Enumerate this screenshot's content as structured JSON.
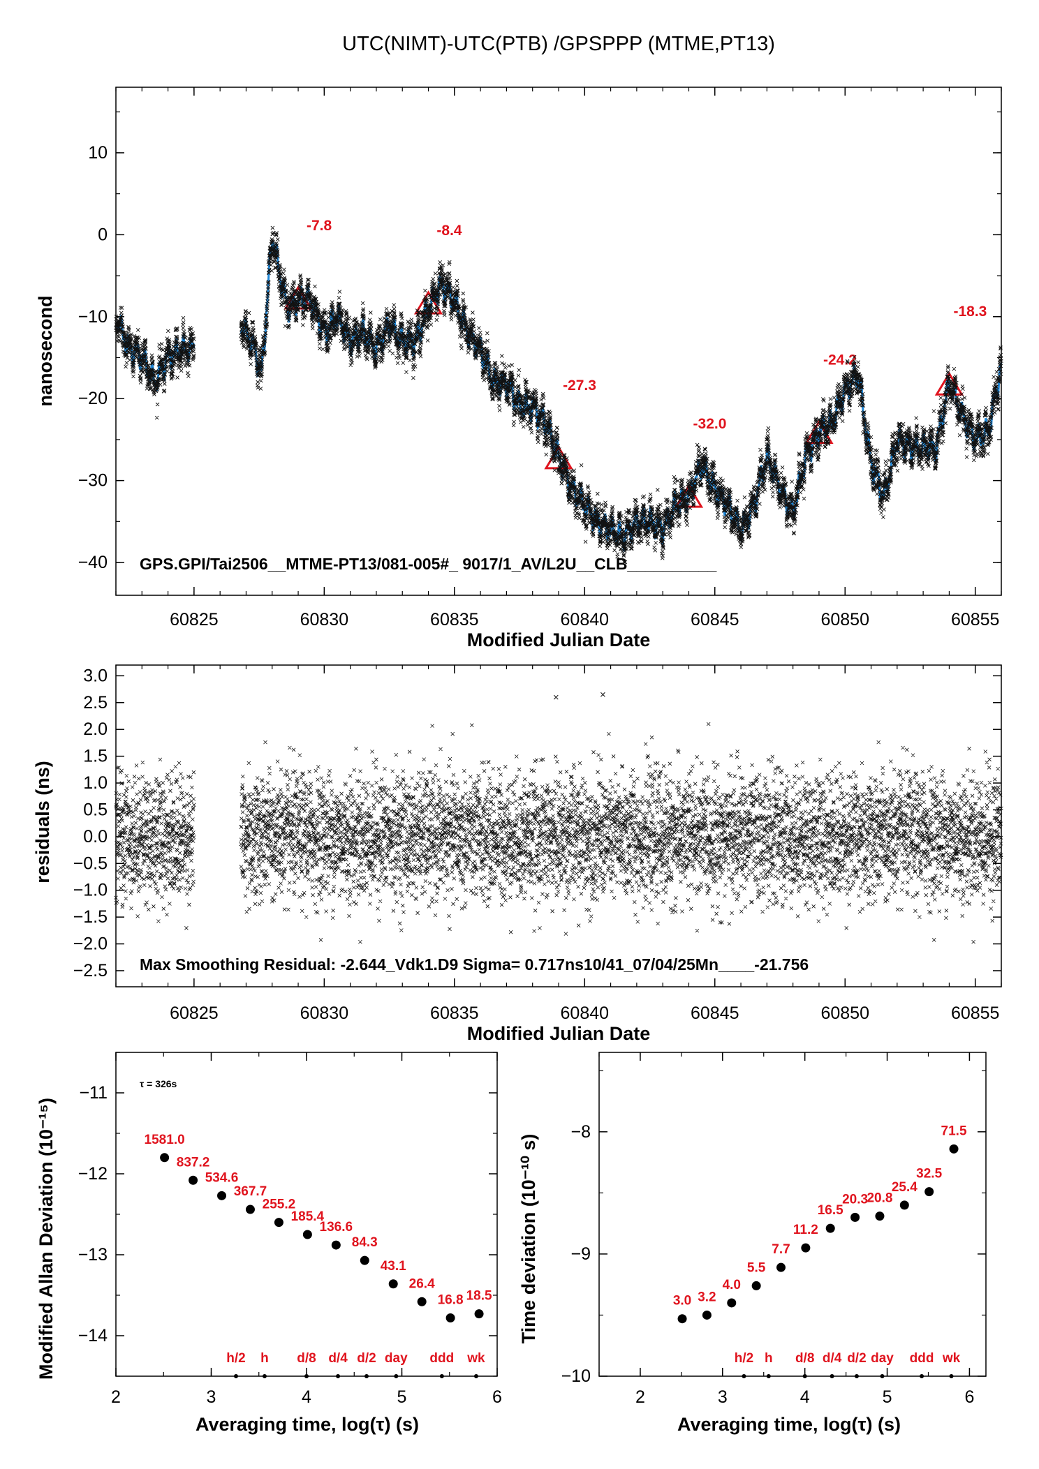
{
  "title": "UTC(NIMT)-UTC(PTB)  /GPSPPP  (MTME,PT13)",
  "colors": {
    "fit": "#1f86d6",
    "points": "#111111",
    "marker": "#e0141e",
    "label": "#e0141e"
  },
  "chart_data": [
    {
      "type": "scatter",
      "ylabel": "nanosecond",
      "xlabel": "Modified Julian Date",
      "xlim": [
        60822,
        60856
      ],
      "ylim": [
        -44,
        18
      ],
      "xticks": [
        "60825",
        "60830",
        "60835",
        "60840",
        "60845",
        "60850",
        "60855"
      ],
      "yticks": [
        "10",
        "0",
        "−10",
        "−20",
        "−30",
        "−40"
      ],
      "annotation": "GPS.GPI/Tai2506__MTME-PT13/081-005#_  9017/1_AV/L2U__CLB__________",
      "data_gap": [
        60825,
        60826.8
      ],
      "trend": {
        "x": [
          60822,
          60822.5,
          60823,
          60823.5,
          60824,
          60824.5,
          60824.9,
          60826.8,
          60827.2,
          60827.6,
          60828,
          60828.3,
          60828.6,
          60829,
          60829.5,
          60830,
          60830.5,
          60831,
          60831.5,
          60832,
          60832.5,
          60833,
          60833.5,
          60834,
          60834.5,
          60835,
          60835.5,
          60836,
          60836.5,
          60837,
          60837.5,
          60838,
          60838.5,
          60839,
          60839.5,
          60840,
          60840.5,
          60841,
          60841.5,
          60842,
          60842.5,
          60843,
          60843.5,
          60844,
          60844.5,
          60845,
          60845.5,
          60846,
          60846.5,
          60847,
          60847.5,
          60848,
          60848.5,
          60849,
          60849.5,
          60850,
          60850.5,
          60851,
          60851.5,
          60852,
          60852.5,
          60853,
          60853.5,
          60854,
          60854.5,
          60855,
          60855.5,
          60856
        ],
        "y": [
          -10,
          -14,
          -15,
          -18,
          -15,
          -14,
          -14,
          -11,
          -13,
          -17,
          0,
          -5,
          -9,
          -8,
          -8,
          -12,
          -10,
          -13,
          -12,
          -14,
          -11,
          -13,
          -13,
          -9,
          -6,
          -8,
          -12,
          -14,
          -18,
          -18,
          -21,
          -21,
          -23,
          -27,
          -31,
          -33,
          -35,
          -36,
          -37,
          -35,
          -35,
          -36,
          -33,
          -32,
          -28,
          -31,
          -33,
          -36,
          -33,
          -27,
          -31,
          -34,
          -27,
          -24,
          -23,
          -19,
          -17,
          -28,
          -32,
          -25,
          -26,
          -26,
          -26,
          -18,
          -22,
          -25,
          -24,
          -16
        ]
      },
      "markers": [
        {
          "x": 60829,
          "y": -7.8,
          "label": "-7.8"
        },
        {
          "x": 60834,
          "y": -8.4,
          "label": "-8.4"
        },
        {
          "x": 60839,
          "y": -27.3,
          "label": "-27.3"
        },
        {
          "x": 60844,
          "y": -32.0,
          "label": "-32.0"
        },
        {
          "x": 60849,
          "y": -24.2,
          "label": "-24.2"
        },
        {
          "x": 60854,
          "y": -18.3,
          "label": "-18.3"
        }
      ]
    },
    {
      "type": "scatter",
      "ylabel": "residuals (ns)",
      "xlabel": "Modified Julian Date",
      "xlim": [
        60822,
        60856
      ],
      "ylim": [
        -2.8,
        3.2
      ],
      "xticks": [
        "60825",
        "60830",
        "60835",
        "60840",
        "60845",
        "60850",
        "60855"
      ],
      "yticks": [
        "3.0",
        "2.5",
        "2.0",
        "1.5",
        "1.0",
        "0.5",
        "0.0",
        "−0.5",
        "−1.0",
        "−1.5",
        "−2.0",
        "−2.5"
      ],
      "annotation": "Max Smoothing Residual: -2.644_Vdk1.D9  Sigma= 0.717ns10/41_07/04/25Mn____-21.756",
      "data_gap": [
        60825,
        60826.8
      ],
      "sigma": 0.717,
      "max_residual": -2.644,
      "outliers": [
        {
          "x": 60838.9,
          "y": 2.6
        },
        {
          "x": 60840.7,
          "y": 2.65
        }
      ]
    },
    {
      "type": "scatter",
      "ylabel": "Modified Allan Deviation (10⁻¹⁵)",
      "xlabel": "Averaging time, log(τ) (s)",
      "xlim": [
        2,
        6
      ],
      "ylim": [
        -14.5,
        -10.5
      ],
      "xticks": [
        "2",
        "3",
        "4",
        "5",
        "6"
      ],
      "yticks": [
        "−11",
        "−12",
        "−13",
        "−14"
      ],
      "tau_note": "τ = 326s",
      "x": [
        2.51,
        2.81,
        3.11,
        3.41,
        3.71,
        4.01,
        4.31,
        4.61,
        4.91,
        5.21,
        5.51,
        5.81
      ],
      "y": [
        -11.8,
        -12.08,
        -12.27,
        -12.44,
        -12.6,
        -12.75,
        -12.88,
        -13.07,
        -13.36,
        -13.58,
        -13.78,
        -13.73
      ],
      "point_labels": [
        "1581.0",
        "837.2",
        "534.6",
        "367.7",
        "255.2",
        "185.4",
        "136.6",
        "84.3",
        "43.1",
        "26.4",
        "16.8",
        "18.5"
      ],
      "reference_ticks": [
        {
          "x": 3.26,
          "label": "h/2"
        },
        {
          "x": 3.56,
          "label": "h"
        },
        {
          "x": 4.0,
          "label": "d/8"
        },
        {
          "x": 4.33,
          "label": "d/4"
        },
        {
          "x": 4.63,
          "label": "d/2"
        },
        {
          "x": 4.94,
          "label": "day"
        },
        {
          "x": 5.42,
          "label": "ddd"
        },
        {
          "x": 5.78,
          "label": "wk"
        }
      ]
    },
    {
      "type": "scatter",
      "ylabel": "Time deviation (10⁻¹⁰ s)",
      "xlabel": "Averaging time, log(τ) (s)",
      "xlim": [
        1.5,
        6.2
      ],
      "ylim": [
        -10,
        -7.35
      ],
      "xticks": [
        "2",
        "3",
        "4",
        "5",
        "6"
      ],
      "yticks": [
        "−8",
        "−9",
        "−10"
      ],
      "x": [
        2.51,
        2.81,
        3.11,
        3.41,
        3.71,
        4.01,
        4.31,
        4.61,
        4.91,
        5.21,
        5.51,
        5.81
      ],
      "y": [
        -9.53,
        -9.5,
        -9.4,
        -9.26,
        -9.11,
        -8.95,
        -8.79,
        -8.7,
        -8.69,
        -8.6,
        -8.49,
        -8.14
      ],
      "point_labels": [
        "3.0",
        "3.2",
        "4.0",
        "5.5",
        "7.7",
        "11.2",
        "16.5",
        "20.3",
        "20.8",
        "25.4",
        "32.5",
        "71.5"
      ],
      "reference_ticks": [
        {
          "x": 3.26,
          "label": "h/2"
        },
        {
          "x": 3.56,
          "label": "h"
        },
        {
          "x": 4.0,
          "label": "d/8"
        },
        {
          "x": 4.33,
          "label": "d/4"
        },
        {
          "x": 4.63,
          "label": "d/2"
        },
        {
          "x": 4.94,
          "label": "day"
        },
        {
          "x": 5.42,
          "label": "ddd"
        },
        {
          "x": 5.78,
          "label": "wk"
        }
      ]
    }
  ]
}
